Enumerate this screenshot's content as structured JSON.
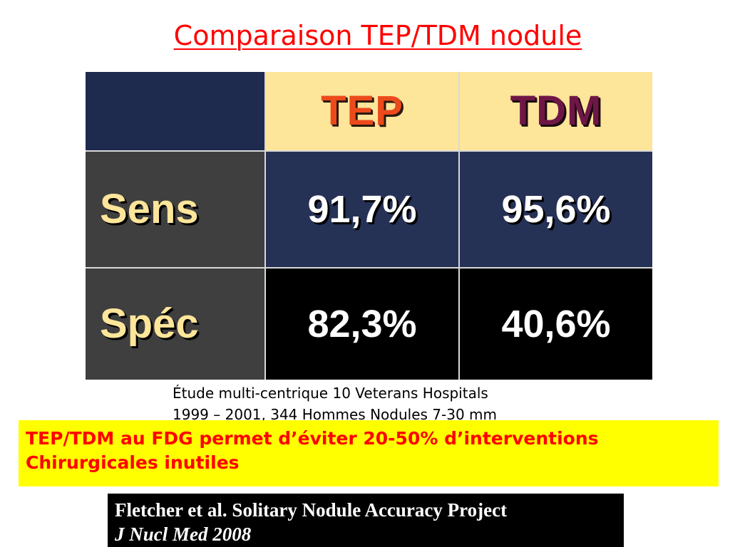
{
  "title": "Comparaison TEP/TDM nodule",
  "table": {
    "headers": [
      "TEP",
      "TDM"
    ],
    "rows": [
      {
        "label": "Sens",
        "values": [
          "91,7%",
          "95,6%"
        ]
      },
      {
        "label": "Spéc",
        "values": [
          "82,3%",
          "40,6%"
        ]
      }
    ]
  },
  "study_note": {
    "line1": "Étude multi-centrique 10 Veterans Hospitals",
    "line2": "1999 – 2001, 344 Hommes Nodules 7-30 mm"
  },
  "callout": {
    "line1": "TEP/TDM au FDG permet d’éviter 20-50% d’interventions",
    "line2": "Chirurgicales inutiles"
  },
  "citation": {
    "line1": "Fletcher et al.  Solitary Nodule Accuracy Project",
    "line2": "J Nucl Med 2008"
  },
  "colors": {
    "title": "#ff0000",
    "header_bg": "#fde59a",
    "tep_header": "#ec4a1b",
    "tdm_header": "#6e1747",
    "row_label_bg": "#3f3f3f",
    "sens_row_bg": "#263156",
    "spec_row_bg": "#000000",
    "callout_bg": "#ffff00",
    "callout_text": "#ff0000"
  }
}
